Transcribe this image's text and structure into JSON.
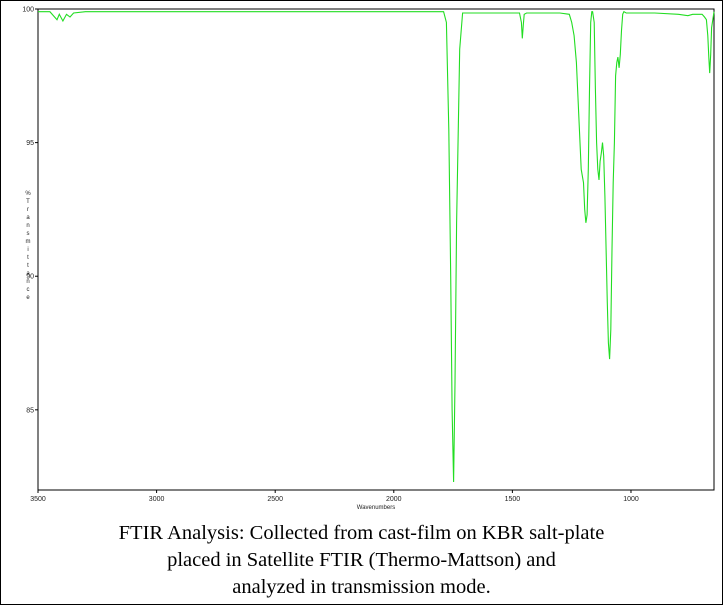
{
  "chart_data": {
    "type": "line",
    "title": "",
    "xlabel": "Wavenumbers",
    "ylabel": "% Transmittance",
    "xlim": [
      3500,
      650
    ],
    "ylim": [
      82,
      100
    ],
    "x_ticks": [
      3500,
      3000,
      2500,
      2000,
      1500,
      1000
    ],
    "y_ticks": [
      100,
      95,
      90,
      85
    ],
    "x_tick_labels": [
      "3500",
      "3000",
      "2500",
      "2000",
      "1500",
      "1000"
    ],
    "y_tick_labels": [
      "100",
      "95",
      "90",
      "85"
    ],
    "legend": "none",
    "grid": false,
    "series": [
      {
        "color": "#22dd22",
        "x": [
          3500,
          3450,
          3420,
          3410,
          3395,
          3380,
          3365,
          3350,
          3300,
          3000,
          2500,
          2000,
          1790,
          1778,
          1768,
          1760,
          1754,
          1748,
          1742,
          1735,
          1722,
          1710,
          1600,
          1470,
          1462,
          1458,
          1454,
          1450,
          1440,
          1300,
          1260,
          1250,
          1240,
          1230,
          1220,
          1210,
          1200,
          1195,
          1190,
          1185,
          1180,
          1175,
          1170,
          1165,
          1162,
          1155,
          1150,
          1145,
          1140,
          1135,
          1130,
          1125,
          1120,
          1115,
          1110,
          1105,
          1100,
          1095,
          1090,
          1085,
          1080,
          1075,
          1070,
          1065,
          1060,
          1055,
          1050,
          1045,
          1040,
          1035,
          1030,
          1020,
          900,
          800,
          760,
          740,
          700,
          690,
          682,
          676,
          672,
          668,
          664,
          660,
          650
        ],
        "y": [
          99.9,
          99.9,
          99.6,
          99.8,
          99.55,
          99.8,
          99.7,
          99.85,
          99.9,
          99.9,
          99.9,
          99.9,
          99.9,
          99.5,
          95.5,
          90.0,
          85.0,
          82.3,
          86.0,
          92.0,
          98.5,
          99.85,
          99.85,
          99.85,
          99.5,
          98.9,
          99.4,
          99.8,
          99.85,
          99.85,
          99.8,
          99.5,
          99.0,
          98.0,
          96.0,
          94.0,
          93.5,
          92.5,
          92.0,
          92.3,
          94.0,
          97.0,
          99.5,
          99.9,
          99.9,
          99.5,
          97.0,
          95.0,
          94.0,
          93.6,
          94.3,
          94.6,
          95.0,
          94.5,
          93.0,
          91.0,
          89.0,
          87.5,
          86.9,
          88.0,
          91.0,
          93.5,
          95.0,
          97.5,
          98.0,
          98.2,
          97.8,
          98.3,
          99.2,
          99.8,
          99.9,
          99.85,
          99.85,
          99.8,
          99.75,
          99.8,
          99.8,
          99.7,
          99.6,
          99.0,
          98.2,
          97.6,
          98.3,
          99.3,
          99.9
        ]
      }
    ]
  },
  "caption": {
    "line1": "FTIR Analysis: Collected from cast-film on KBR salt-plate",
    "line2": "placed in Satellite FTIR (Thermo-Mattson) and",
    "line3": "analyzed in transmission mode."
  }
}
